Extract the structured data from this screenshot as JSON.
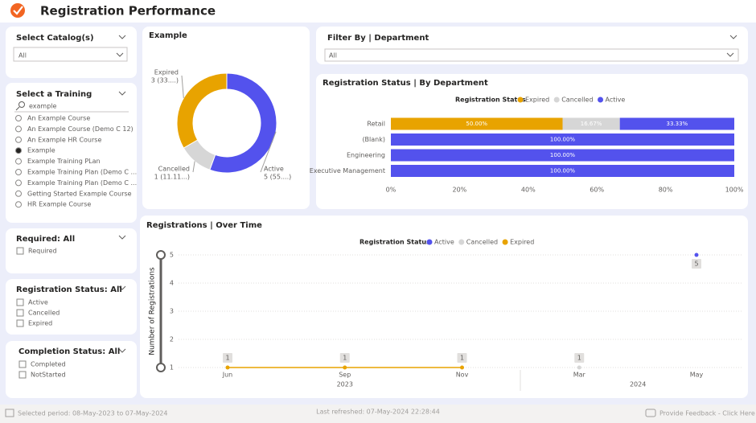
{
  "header": {
    "title": "Registration Performance"
  },
  "catalog_filter": {
    "label": "Select Catalog(s)",
    "value": "All"
  },
  "training_filter": {
    "label": "Select a Training",
    "search": "example",
    "options": [
      "An Example Course",
      "An Example Course (Demo C 12)",
      "An Example HR Course",
      "Example",
      "Example Training PLan",
      "Example Training Plan (Demo C ...",
      "Example Training Plan (Demo C ...",
      "Getting Started Example Course",
      "HR Example Course"
    ],
    "selected": 3
  },
  "required_filter": {
    "label": "Required: All",
    "options": [
      "Required"
    ]
  },
  "status_filter": {
    "label": "Registration Status: All",
    "options": [
      "Active",
      "Cancelled",
      "Expired"
    ]
  },
  "completion_filter": {
    "label": "Completion Status: All",
    "options": [
      "Completed",
      "NotStarted"
    ]
  },
  "department_filter": {
    "label": "Filter By | Department",
    "value": "All"
  },
  "donut": {
    "type": "pie",
    "title": "Example",
    "categories": [
      "Expired",
      "Cancelled",
      "Active"
    ],
    "values": [
      3,
      1,
      5
    ],
    "value_labels": [
      "3 (33....)",
      "1 (11.11...)",
      "5 (55....)"
    ],
    "colors": [
      "#e8a300",
      "#d6d6d6",
      "#5352ed"
    ]
  },
  "bar": {
    "type": "bar",
    "title": "Registration Status | By Department",
    "legend_title": "Registration Status",
    "categories": [
      "Retail",
      "(Blank)",
      "Engineering",
      "Executive Management"
    ],
    "series": [
      {
        "name": "Expired",
        "color": "#e8a300",
        "values": [
          50,
          null,
          null,
          null
        ],
        "value_labels": [
          "50.00%",
          null,
          null,
          null
        ]
      },
      {
        "name": "Cancelled",
        "color": "#d6d6d6",
        "values": [
          16.67,
          null,
          null,
          null
        ],
        "value_labels": [
          "16.67%",
          null,
          null,
          null
        ]
      },
      {
        "name": "Active",
        "color": "#5352ed",
        "values": [
          33.33,
          100,
          100,
          100
        ],
        "value_labels": [
          "33.33%",
          "100.00%",
          "100.00%",
          "100.00%"
        ]
      }
    ],
    "xlim": [
      0,
      100
    ],
    "xticks": [
      {
        "value": 0,
        "label": "0%"
      },
      {
        "value": 20,
        "label": "20%"
      },
      {
        "value": 40,
        "label": "40%"
      },
      {
        "value": 60,
        "label": "60%"
      },
      {
        "value": 80,
        "label": "80%"
      },
      {
        "value": 100,
        "label": "100%"
      }
    ]
  },
  "line": {
    "type": "line",
    "title": "Registrations | Over Time",
    "legend_title": "Registration Status",
    "y_label": "Number of Registrations",
    "categories": [
      "Jun",
      "Sep",
      "Nov",
      "Mar",
      "May"
    ],
    "year_groups": [
      {
        "label": "2023",
        "from": 0,
        "to": 2
      },
      {
        "label": "2024",
        "from": 3,
        "to": 4
      }
    ],
    "series": [
      {
        "name": "Active",
        "color": "#5352ed",
        "values": [
          null,
          null,
          null,
          null,
          5
        ]
      },
      {
        "name": "Cancelled",
        "color": "#d6d6d6",
        "values": [
          null,
          null,
          null,
          1,
          null
        ]
      },
      {
        "name": "Expired",
        "color": "#e8a300",
        "values": [
          1,
          1,
          1,
          null,
          null
        ]
      }
    ],
    "ylim": [
      1,
      5
    ],
    "yticks": [
      1,
      2,
      3,
      4,
      5
    ],
    "grid": true
  },
  "footer": {
    "period": "Selected period: 08-May-2023 to 07-May-2024",
    "refreshed": "Last refreshed: 07-May-2024 22:28:44",
    "feedback": "Provide Feedback - Click Here"
  }
}
